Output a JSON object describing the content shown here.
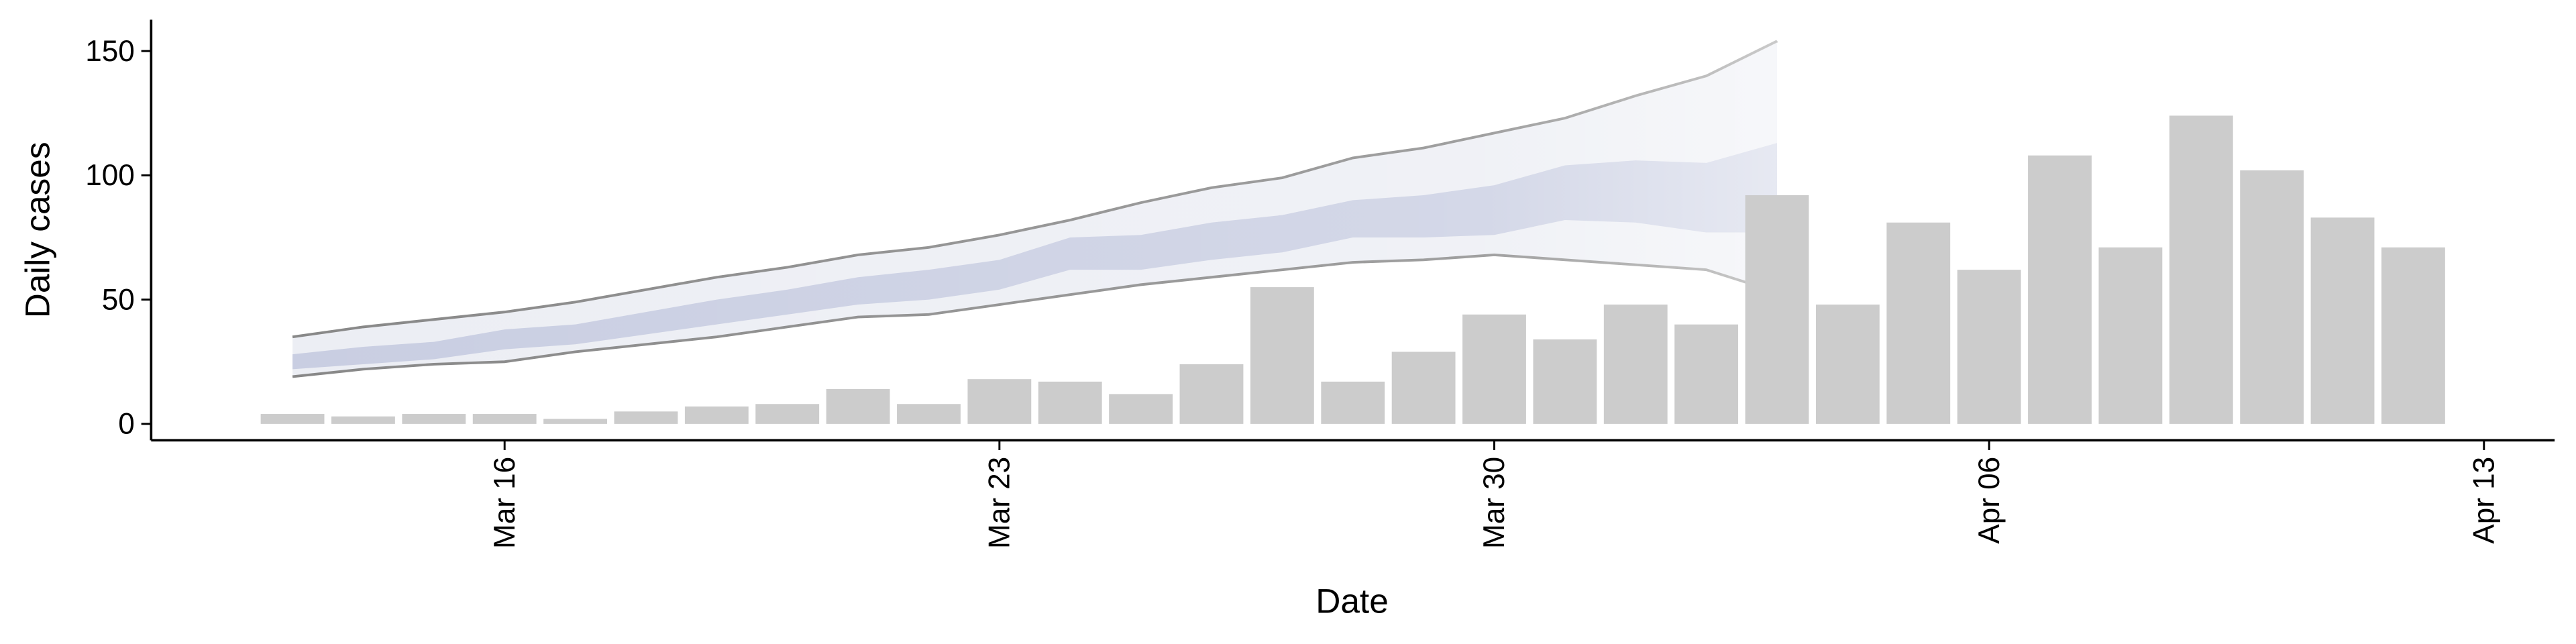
{
  "chart_data": {
    "type": "bar",
    "x_label": "Date",
    "y_label": "Daily cases",
    "xlim": [
      11,
      45
    ],
    "ylim": [
      -6.6,
      162.6
    ],
    "xticks": [
      {
        "value": 16,
        "label": "Mar 16"
      },
      {
        "value": 23,
        "label": "Mar 23"
      },
      {
        "value": 30,
        "label": "Mar 30"
      },
      {
        "value": 37,
        "label": "Apr 06"
      },
      {
        "value": 44,
        "label": "Apr 13"
      }
    ],
    "yticks": [
      0,
      50,
      100,
      150
    ],
    "bars": {
      "color": "#cccccc",
      "x": [
        13,
        14,
        15,
        16,
        17,
        18,
        19,
        20,
        21,
        22,
        23,
        24,
        25,
        26,
        27,
        28,
        29,
        30,
        31,
        32,
        33,
        34,
        35,
        36,
        37,
        38,
        39,
        40,
        41,
        42,
        43
      ],
      "values": [
        4,
        3,
        4,
        4,
        2,
        5,
        7,
        8,
        14,
        8,
        18,
        17,
        12,
        24,
        55,
        17,
        29,
        44,
        34,
        48,
        40,
        92,
        48,
        81,
        62,
        108,
        71,
        124,
        102,
        83,
        71
      ]
    },
    "projection": {
      "outer_color": "#eceef4",
      "inner_color": "#c9cee2",
      "line_color": "#888888",
      "x": [
        13,
        14,
        15,
        16,
        17,
        18,
        19,
        20,
        21,
        22,
        23,
        24,
        25,
        26,
        27,
        28,
        29,
        30,
        31,
        32,
        33,
        34
      ],
      "upper": [
        35,
        39,
        42,
        45,
        49,
        54,
        59,
        63,
        68,
        71,
        76,
        82,
        89,
        95,
        99,
        107,
        111,
        117,
        123,
        132,
        140,
        154
      ],
      "lower": [
        19,
        22,
        24,
        25,
        29,
        32,
        35,
        39,
        43,
        44,
        48,
        52,
        56,
        59,
        62,
        65,
        66,
        68,
        66,
        64,
        62,
        53
      ],
      "inner_upper": [
        28,
        31,
        33,
        38,
        40,
        45,
        50,
        54,
        59,
        62,
        66,
        75,
        76,
        81,
        84,
        90,
        92,
        96,
        104,
        106,
        105,
        113
      ],
      "inner_lower": [
        22,
        24,
        26,
        30,
        32,
        36,
        40,
        44,
        48,
        50,
        54,
        62,
        62,
        66,
        69,
        75,
        75,
        76,
        82,
        81,
        77,
        77
      ]
    }
  }
}
